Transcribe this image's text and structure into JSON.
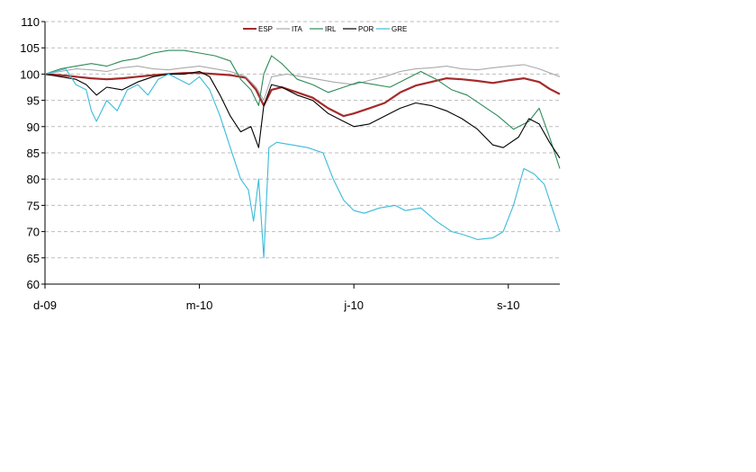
{
  "chart_data": {
    "type": "line",
    "title": "",
    "xlabel": "",
    "ylabel": "",
    "ylim": [
      60,
      110
    ],
    "y_ticks": [
      60,
      65,
      70,
      75,
      80,
      85,
      90,
      95,
      100,
      105,
      110
    ],
    "x_range": [
      0,
      10
    ],
    "x_ticks": [
      {
        "x": 0,
        "label": "d-09"
      },
      {
        "x": 3,
        "label": "m-10"
      },
      {
        "x": 6,
        "label": "j-10"
      },
      {
        "x": 9,
        "label": "s-10"
      }
    ],
    "grid": "horizontal dashed",
    "legend_position": "top",
    "series": [
      {
        "name": "ESP",
        "color": "#a52a2a",
        "width": 2.2,
        "x": [
          0,
          0.3,
          0.6,
          0.9,
          1.2,
          1.5,
          1.8,
          2.1,
          2.4,
          2.7,
          3.0,
          3.3,
          3.6,
          3.9,
          4.1,
          4.25,
          4.4,
          4.6,
          4.9,
          5.2,
          5.5,
          5.8,
          6.0,
          6.3,
          6.6,
          6.9,
          7.2,
          7.5,
          7.8,
          8.1,
          8.4,
          8.7,
          9.0,
          9.3,
          9.6,
          9.8,
          10.0
        ],
        "y": [
          100,
          99.8,
          99.5,
          99.2,
          99,
          99.2,
          99.5,
          99.8,
          100,
          100.2,
          100.2,
          100,
          99.8,
          99.3,
          97,
          94,
          97,
          97.5,
          96.5,
          95.5,
          93.5,
          92,
          92.5,
          93.5,
          94.5,
          96.5,
          97.8,
          98.5,
          99.2,
          99,
          98.7,
          98.3,
          98.8,
          99.2,
          98.5,
          97.2,
          96.2
        ]
      },
      {
        "name": "ITA",
        "color": "#a9a9a9",
        "width": 1.1,
        "x": [
          0,
          0.3,
          0.6,
          0.9,
          1.2,
          1.5,
          1.8,
          2.1,
          2.4,
          2.7,
          3.0,
          3.3,
          3.6,
          3.9,
          4.1,
          4.25,
          4.4,
          4.7,
          5.0,
          5.3,
          5.6,
          6.0,
          6.3,
          6.6,
          6.9,
          7.2,
          7.5,
          7.8,
          8.1,
          8.4,
          8.7,
          9.0,
          9.3,
          9.6,
          10.0
        ],
        "y": [
          100,
          100.5,
          101,
          100.8,
          100.5,
          101.2,
          101.5,
          101,
          100.8,
          101.2,
          101.5,
          101,
          100.5,
          99.5,
          97.5,
          95,
          99.5,
          100,
          99.5,
          99,
          98.5,
          98,
          98.8,
          99.5,
          100.5,
          101,
          101.2,
          101.5,
          101,
          100.8,
          101.2,
          101.5,
          101.8,
          101,
          99.5
        ]
      },
      {
        "name": "IRL",
        "color": "#2e8b57",
        "width": 1.1,
        "x": [
          0,
          0.3,
          0.6,
          0.9,
          1.2,
          1.5,
          1.8,
          2.1,
          2.4,
          2.7,
          3.0,
          3.3,
          3.6,
          3.8,
          4.0,
          4.15,
          4.25,
          4.4,
          4.6,
          4.9,
          5.2,
          5.5,
          5.8,
          6.1,
          6.4,
          6.7,
          7.0,
          7.3,
          7.6,
          7.9,
          8.2,
          8.5,
          8.8,
          9.1,
          9.4,
          9.6,
          9.8,
          10.0
        ],
        "y": [
          100,
          101,
          101.5,
          102,
          101.5,
          102.5,
          103,
          104,
          104.5,
          104.5,
          104,
          103.5,
          102.5,
          99,
          97,
          94,
          100,
          103.5,
          102,
          99,
          98,
          96.5,
          97.5,
          98.5,
          98,
          97.5,
          99,
          100.5,
          99,
          97,
          96,
          94,
          92,
          89.5,
          91,
          93.5,
          88,
          82
        ]
      },
      {
        "name": "POR",
        "color": "#000000",
        "width": 1.1,
        "x": [
          0,
          0.3,
          0.6,
          0.8,
          1.0,
          1.2,
          1.5,
          1.8,
          2.1,
          2.4,
          2.7,
          3.0,
          3.2,
          3.4,
          3.6,
          3.8,
          4.0,
          4.15,
          4.25,
          4.4,
          4.6,
          4.9,
          5.2,
          5.5,
          5.8,
          6.0,
          6.3,
          6.6,
          6.9,
          7.2,
          7.5,
          7.8,
          8.1,
          8.4,
          8.7,
          8.9,
          9.2,
          9.4,
          9.6,
          9.8,
          10.0
        ],
        "y": [
          100,
          99.5,
          99,
          98,
          96,
          97.5,
          97,
          98.5,
          99.5,
          100,
          100,
          100.5,
          99.5,
          96,
          92,
          89,
          90,
          86,
          94,
          98,
          97.5,
          96,
          95,
          92.5,
          91,
          90,
          90.5,
          92,
          93.5,
          94.5,
          94,
          93,
          91.5,
          89.5,
          86.5,
          86,
          88,
          91.5,
          90.5,
          87,
          84
        ]
      },
      {
        "name": "GRE",
        "color": "#3bbbd9",
        "width": 1.1,
        "x": [
          0,
          0.2,
          0.4,
          0.6,
          0.8,
          0.9,
          1.0,
          1.2,
          1.4,
          1.6,
          1.8,
          2.0,
          2.2,
          2.4,
          2.6,
          2.8,
          3.0,
          3.2,
          3.4,
          3.6,
          3.8,
          3.95,
          4.05,
          4.15,
          4.25,
          4.35,
          4.5,
          4.8,
          5.1,
          5.4,
          5.6,
          5.8,
          6.0,
          6.2,
          6.5,
          6.8,
          7.0,
          7.3,
          7.6,
          7.9,
          8.1,
          8.4,
          8.7,
          8.9,
          9.1,
          9.3,
          9.5,
          9.7,
          9.9,
          10.0
        ],
        "y": [
          100,
          100.5,
          101,
          98,
          97,
          93,
          91,
          95,
          93,
          97,
          98,
          96,
          99,
          100,
          99,
          98,
          99.5,
          97,
          92,
          86,
          80,
          78,
          72,
          80,
          65,
          86,
          87,
          86.5,
          86,
          85,
          80,
          76,
          74,
          73.5,
          74.5,
          75,
          74,
          74.5,
          72,
          70,
          69.5,
          68.5,
          68.8,
          70,
          75,
          82,
          81,
          79,
          73,
          70
        ]
      }
    ]
  }
}
